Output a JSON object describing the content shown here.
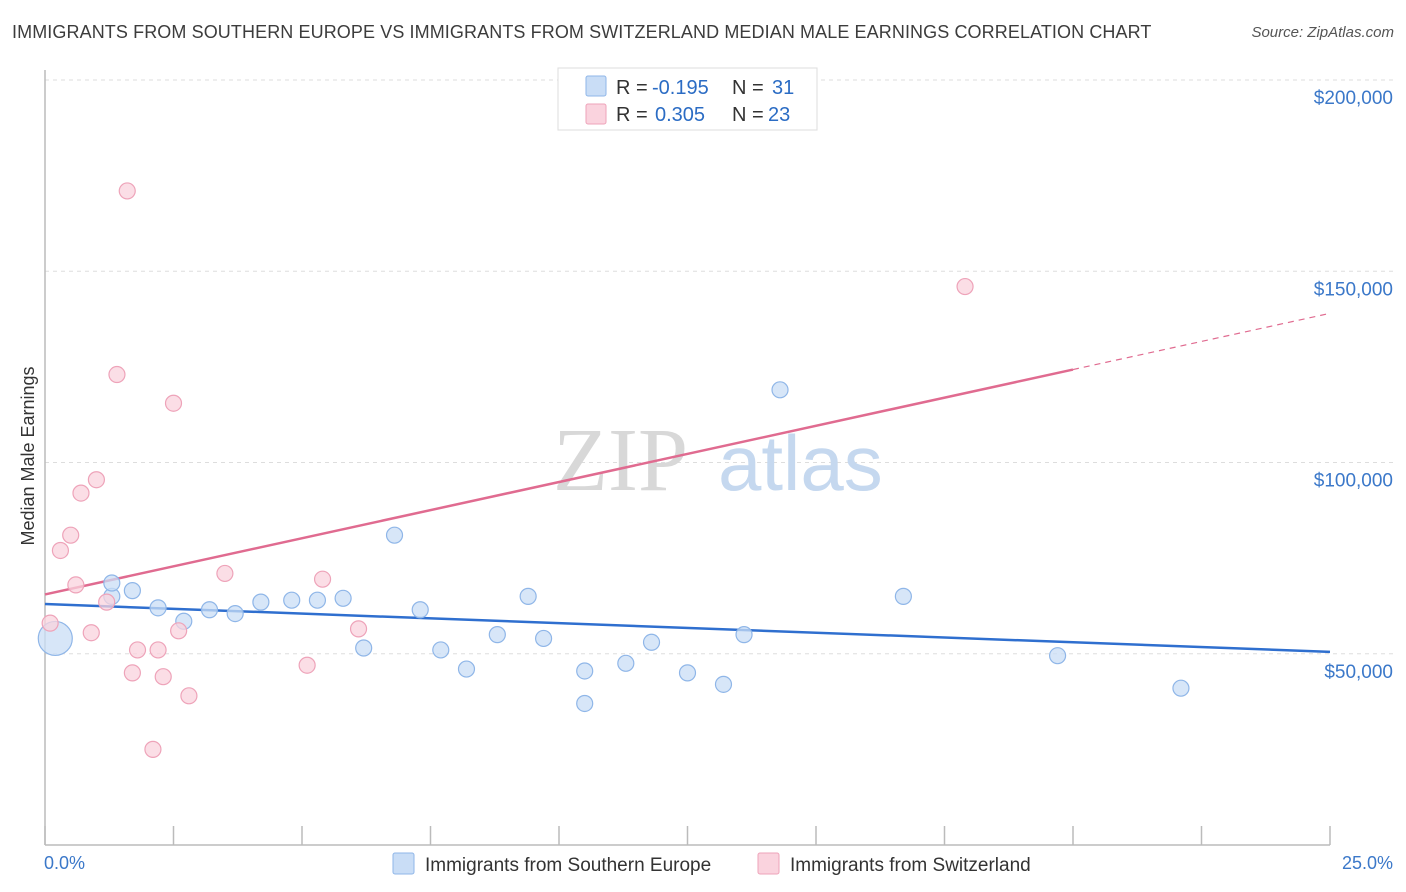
{
  "title": "IMMIGRANTS FROM SOUTHERN EUROPE VS IMMIGRANTS FROM SWITZERLAND MEDIAN MALE EARNINGS CORRELATION CHART",
  "source": "Source: ZipAtlas.com",
  "watermark": {
    "zip": "ZIP",
    "atlas": "atlas"
  },
  "legend": {
    "r_label": "R =",
    "n_label": "N =",
    "rows": [
      {
        "r": "-0.195",
        "n": "31",
        "color": "#a8c8f0"
      },
      {
        "r": "0.305",
        "n": "23",
        "color": "#f5b8c9"
      }
    ]
  },
  "colors": {
    "blue_fill": "#c9ddf6",
    "blue_stroke": "#8fb6e8",
    "blue_line": "#2f6fcf",
    "pink_fill": "#fad3de",
    "pink_stroke": "#eea3b9",
    "pink_line": "#e06b90",
    "tick_text": "#3b78c9",
    "grid": "#dddddd"
  },
  "chart_data": {
    "type": "scatter",
    "title": "IMMIGRANTS FROM SOUTHERN EUROPE VS IMMIGRANTS FROM SWITZERLAND MEDIAN MALE EARNINGS CORRELATION CHART",
    "xlabel": "",
    "ylabel": "Median Male Earnings",
    "xlim": [
      0,
      25
    ],
    "ylim": [
      0,
      210000
    ],
    "x_tick_labels": [
      "0.0%",
      "25.0%"
    ],
    "y_ticks": [
      50000,
      100000,
      150000,
      200000
    ],
    "y_tick_labels": [
      "$50,000",
      "$100,000",
      "$150,000",
      "$200,000"
    ],
    "grid": true,
    "legend_position": "top-center",
    "series": [
      {
        "name": "Immigrants from Southern Europe",
        "color": "#a8c8f0",
        "trend": {
          "x0": 0,
          "y0": 63000,
          "x1": 25,
          "y1": 50500,
          "x_solid_end": 25
        },
        "points": [
          {
            "x": 0.2,
            "y": 54000,
            "big": true
          },
          {
            "x": 1.3,
            "y": 65000
          },
          {
            "x": 1.3,
            "y": 68500
          },
          {
            "x": 1.7,
            "y": 66500
          },
          {
            "x": 2.2,
            "y": 62000
          },
          {
            "x": 2.7,
            "y": 58500
          },
          {
            "x": 3.2,
            "y": 61500
          },
          {
            "x": 3.7,
            "y": 60500
          },
          {
            "x": 4.2,
            "y": 63500
          },
          {
            "x": 4.8,
            "y": 64000
          },
          {
            "x": 5.3,
            "y": 64000
          },
          {
            "x": 5.8,
            "y": 64500
          },
          {
            "x": 6.2,
            "y": 51500
          },
          {
            "x": 6.8,
            "y": 81000
          },
          {
            "x": 7.3,
            "y": 61500
          },
          {
            "x": 7.7,
            "y": 51000
          },
          {
            "x": 8.2,
            "y": 46000
          },
          {
            "x": 8.8,
            "y": 55000
          },
          {
            "x": 9.4,
            "y": 65000
          },
          {
            "x": 9.7,
            "y": 54000
          },
          {
            "x": 10.5,
            "y": 45500
          },
          {
            "x": 10.5,
            "y": 37000
          },
          {
            "x": 11.3,
            "y": 47500
          },
          {
            "x": 11.8,
            "y": 53000
          },
          {
            "x": 12.5,
            "y": 45000
          },
          {
            "x": 13.2,
            "y": 42000
          },
          {
            "x": 13.6,
            "y": 55000
          },
          {
            "x": 14.3,
            "y": 119000
          },
          {
            "x": 16.7,
            "y": 65000
          },
          {
            "x": 19.7,
            "y": 49500
          },
          {
            "x": 22.1,
            "y": 41000
          }
        ]
      },
      {
        "name": "Immigrants from Switzerland",
        "color": "#f5b8c9",
        "trend": {
          "x0": 0,
          "y0": 65500,
          "x1": 25,
          "y1": 139000,
          "x_solid_end": 20
        },
        "points": [
          {
            "x": 0.1,
            "y": 58000
          },
          {
            "x": 0.3,
            "y": 77000
          },
          {
            "x": 0.5,
            "y": 81000
          },
          {
            "x": 0.6,
            "y": 68000
          },
          {
            "x": 0.9,
            "y": 55500
          },
          {
            "x": 0.7,
            "y": 92000
          },
          {
            "x": 1.0,
            "y": 95500
          },
          {
            "x": 1.2,
            "y": 63500
          },
          {
            "x": 1.4,
            "y": 123000
          },
          {
            "x": 1.6,
            "y": 171000
          },
          {
            "x": 1.7,
            "y": 45000
          },
          {
            "x": 1.8,
            "y": 51000
          },
          {
            "x": 2.1,
            "y": 25000
          },
          {
            "x": 2.2,
            "y": 51000
          },
          {
            "x": 2.3,
            "y": 44000
          },
          {
            "x": 2.5,
            "y": 115500
          },
          {
            "x": 2.6,
            "y": 56000
          },
          {
            "x": 2.8,
            "y": 39000
          },
          {
            "x": 3.5,
            "y": 71000
          },
          {
            "x": 5.1,
            "y": 47000
          },
          {
            "x": 5.4,
            "y": 69500
          },
          {
            "x": 6.1,
            "y": 56500
          },
          {
            "x": 17.9,
            "y": 146000
          }
        ]
      }
    ]
  }
}
